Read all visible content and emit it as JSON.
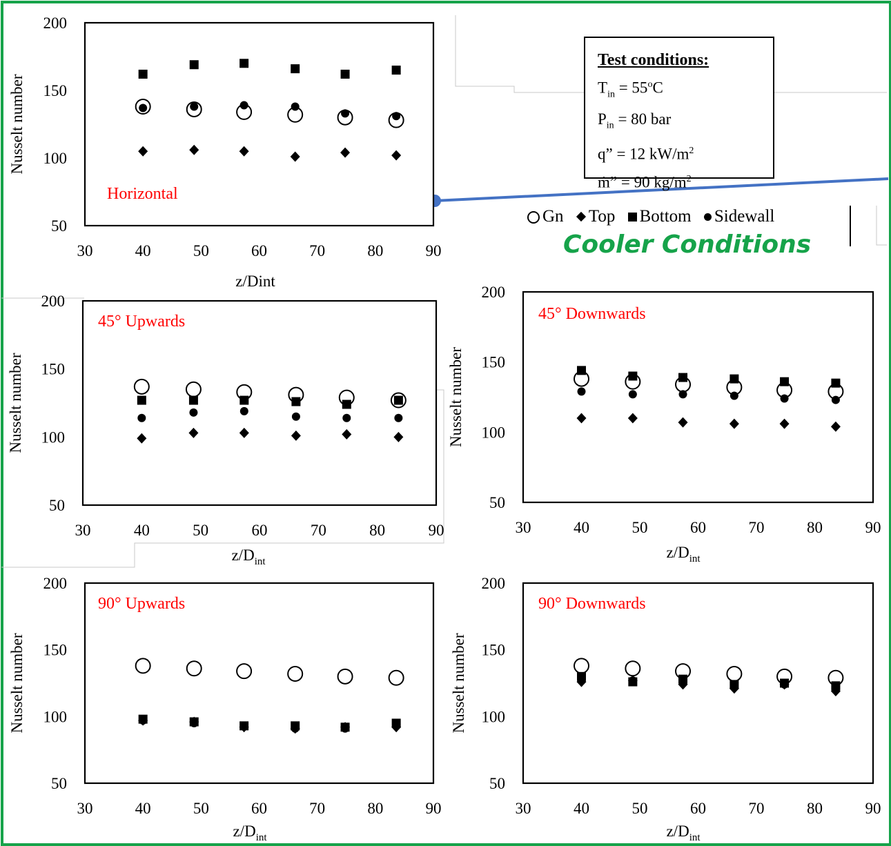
{
  "legend": {
    "gn": "Gn",
    "top": "Top",
    "bottom": "Bottom",
    "sidewall": "Sidewall"
  },
  "banner": "Cooler Conditions",
  "conditions": {
    "title": "Test conditions:",
    "lines": [
      {
        "pre": "T",
        "sub": "in",
        "sup": "",
        "post": " = 55",
        "sup2": "o",
        "tail": "C"
      },
      {
        "pre": "P",
        "sub": "in",
        "sup": "",
        "post": " = 80  bar",
        "sup2": "",
        "tail": ""
      },
      {
        "pre": "q” = 12  kW/m",
        "sub": "",
        "sup": "2",
        "post": "",
        "sup2": "",
        "tail": ""
      },
      {
        "pre": "ṁ” = 90  kg/m",
        "sub": "",
        "sup": "2",
        "post": "",
        "sup2": "",
        "tail": ""
      }
    ]
  },
  "colors": {
    "frame": "#16a34a",
    "title_red": "#ff0000",
    "banner": "#16a34a",
    "connector": "#4472c4"
  },
  "chart_data": [
    {
      "id": "horizontal",
      "type": "scatter",
      "title": "Horizontal",
      "xlabel_main": "z/Dint",
      "xlabel_sub": "",
      "ylabel": "Nusselt number",
      "xlim": [
        30,
        90
      ],
      "ylim": [
        50,
        200
      ],
      "xticks": [
        30,
        40,
        50,
        60,
        70,
        80,
        90
      ],
      "yticks": [
        50,
        100,
        150,
        200
      ],
      "x": [
        40,
        48.8,
        57.4,
        66.2,
        74.8,
        83.6
      ],
      "series": [
        {
          "name": "Gn",
          "marker": "circle",
          "values": [
            138,
            136,
            134,
            132,
            130,
            128
          ]
        },
        {
          "name": "Top",
          "marker": "diamond",
          "values": [
            105,
            106,
            105,
            101,
            104,
            102
          ]
        },
        {
          "name": "Bottom",
          "marker": "square",
          "values": [
            162,
            169,
            170,
            166,
            162,
            165
          ]
        },
        {
          "name": "Sidewall",
          "marker": "dot",
          "values": [
            137,
            138,
            139,
            138,
            133,
            131
          ]
        }
      ]
    },
    {
      "id": "up45",
      "type": "scatter",
      "title": "45° Upwards",
      "xlabel_main": "z/D",
      "xlabel_sub": "int",
      "ylabel": "Nusselt number",
      "xlim": [
        30,
        90
      ],
      "ylim": [
        50,
        200
      ],
      "xticks": [
        30,
        40,
        50,
        60,
        70,
        80,
        90
      ],
      "yticks": [
        50,
        100,
        150,
        200
      ],
      "x": [
        40,
        48.8,
        57.4,
        66.2,
        74.8,
        83.6
      ],
      "series": [
        {
          "name": "Gn",
          "marker": "circle",
          "values": [
            137,
            135,
            133,
            131,
            129,
            127
          ]
        },
        {
          "name": "Top",
          "marker": "diamond",
          "values": [
            99,
            103,
            103,
            101,
            102,
            100
          ]
        },
        {
          "name": "Bottom",
          "marker": "square",
          "values": [
            127,
            127,
            127,
            126,
            124,
            127
          ]
        },
        {
          "name": "Sidewall",
          "marker": "dot",
          "values": [
            114,
            118,
            119,
            115,
            114,
            114
          ]
        }
      ]
    },
    {
      "id": "down45",
      "type": "scatter",
      "title": "45° Downwards",
      "xlabel_main": "z/D",
      "xlabel_sub": "int",
      "ylabel": "Nusselt number",
      "xlim": [
        30,
        90
      ],
      "ylim": [
        50,
        200
      ],
      "xticks": [
        30,
        40,
        50,
        60,
        70,
        80,
        90
      ],
      "yticks": [
        50,
        100,
        150,
        200
      ],
      "x": [
        40,
        48.8,
        57.4,
        66.2,
        74.8,
        83.6
      ],
      "series": [
        {
          "name": "Gn",
          "marker": "circle",
          "values": [
            138,
            136,
            134,
            132,
            130,
            129
          ]
        },
        {
          "name": "Top",
          "marker": "diamond",
          "values": [
            110,
            110,
            107,
            106,
            106,
            104
          ]
        },
        {
          "name": "Bottom",
          "marker": "square",
          "values": [
            144,
            140,
            139,
            138,
            136,
            135
          ]
        },
        {
          "name": "Sidewall",
          "marker": "dot",
          "values": [
            129,
            127,
            127,
            126,
            124,
            123
          ]
        }
      ]
    },
    {
      "id": "up90",
      "type": "scatter",
      "title": "90° Upwards",
      "xlabel_main": "z/D",
      "xlabel_sub": "int",
      "ylabel": "Nusselt number",
      "xlim": [
        30,
        90
      ],
      "ylim": [
        50,
        200
      ],
      "xticks": [
        30,
        40,
        50,
        60,
        70,
        80,
        90
      ],
      "yticks": [
        50,
        100,
        150,
        200
      ],
      "x": [
        40,
        48.8,
        57.4,
        66.2,
        74.8,
        83.6
      ],
      "series": [
        {
          "name": "Gn",
          "marker": "circle",
          "values": [
            138,
            136,
            134,
            132,
            130,
            129
          ]
        },
        {
          "name": "Top",
          "marker": "diamond",
          "values": [
            97,
            96,
            92,
            91,
            92,
            92
          ]
        },
        {
          "name": "Bottom",
          "marker": "square",
          "values": [
            98,
            96,
            93,
            93,
            92,
            95
          ]
        },
        {
          "name": "Sidewall",
          "marker": "dot",
          "values": [
            97,
            95,
            93,
            91,
            91,
            93
          ]
        }
      ]
    },
    {
      "id": "down90",
      "type": "scatter",
      "title": "90° Downwards",
      "xlabel_main": "z/D",
      "xlabel_sub": "int",
      "ylabel": "Nusselt number",
      "xlim": [
        30,
        90
      ],
      "ylim": [
        50,
        200
      ],
      "xticks": [
        30,
        40,
        50,
        60,
        70,
        80,
        90
      ],
      "yticks": [
        50,
        100,
        150,
        200
      ],
      "x": [
        40,
        48.8,
        57.4,
        66.2,
        74.8,
        83.6
      ],
      "series": [
        {
          "name": "Gn",
          "marker": "circle",
          "values": [
            138,
            136,
            134,
            132,
            130,
            129
          ]
        },
        {
          "name": "Top",
          "marker": "diamond",
          "values": [
            126,
            127,
            124,
            121,
            124,
            119
          ]
        },
        {
          "name": "Bottom",
          "marker": "square",
          "values": [
            130,
            126,
            128,
            124,
            125,
            123
          ]
        },
        {
          "name": "Sidewall",
          "marker": "dot",
          "values": [
            129,
            127,
            126,
            124,
            124,
            122
          ]
        }
      ]
    }
  ]
}
